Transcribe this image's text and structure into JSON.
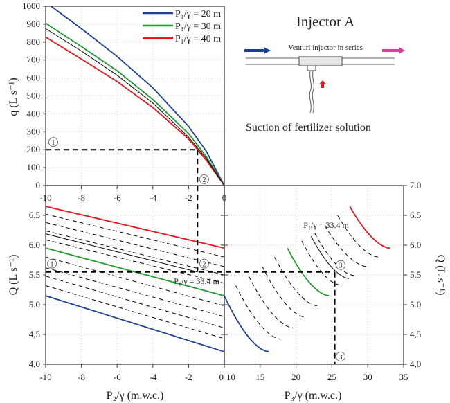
{
  "diagram": {
    "title": "Injector A",
    "caption_top": "Venturi injector in series",
    "caption_bottom": "Suction of fertilizer solution",
    "inflow_arrow_color": "#1f3f8f",
    "outflow_arrow_color": "#c8468f",
    "suction_arrow_color": "#e8141c"
  },
  "chart_data": [
    {
      "id": "top",
      "type": "line",
      "xlabel": "",
      "ylabel": "q (L s⁻¹)",
      "xlim": [
        -10,
        0
      ],
      "ylim": [
        0,
        1000
      ],
      "yticks": [
        "0",
        "100",
        "200",
        "300",
        "400",
        "500",
        "600",
        "700",
        "800",
        "900",
        "1000"
      ],
      "grid": true,
      "legend": "top-right",
      "series": [
        {
          "name": "P₁/γ = 20 m",
          "color": "#1f3f8f",
          "x": [
            -9.7,
            -8,
            -6,
            -4,
            -2,
            -1,
            0
          ],
          "y": [
            1000,
            875,
            720,
            545,
            330,
            190,
            0
          ]
        },
        {
          "name": "P₁/γ = 30 m",
          "color": "#1e9a2e",
          "x": [
            -10,
            -8,
            -6,
            -4,
            -2,
            -1,
            0
          ],
          "y": [
            905,
            775,
            640,
            480,
            290,
            160,
            0
          ]
        },
        {
          "name": "P₁/γ = 40 m",
          "color": "#e8141c",
          "x": [
            -10,
            -8,
            -6,
            -4,
            -2,
            -1,
            0
          ],
          "y": [
            828,
            705,
            580,
            435,
            260,
            140,
            0
          ]
        },
        {
          "color": "#000000",
          "x": [
            -10,
            -8,
            -6,
            -4,
            -2,
            -1,
            0
          ],
          "y": [
            875,
            750,
            615,
            460,
            270,
            150,
            0
          ]
        }
      ],
      "guide": {
        "q": 200,
        "p2": -1.5,
        "markers": [
          "①",
          "②"
        ]
      }
    },
    {
      "id": "bottom-left",
      "type": "line",
      "xlabel": "P₂/γ (m.w.c.)",
      "ylabel": "Q (L s⁻¹)",
      "xlim": [
        -10,
        0
      ],
      "ylim": [
        4.0,
        7.0
      ],
      "xticks": [
        "-10",
        "-8",
        "-6",
        "-4",
        "-2",
        "0"
      ],
      "yticks": [
        "4,0",
        "4,5",
        "5.0",
        "5.5",
        "6.0",
        "6.5"
      ],
      "grid": true,
      "annotation": "P₁/γ = 33.4 m",
      "series": [
        {
          "color": "#e8141c",
          "x": [
            -10,
            0
          ],
          "y": [
            6.65,
            5.95
          ]
        },
        {
          "color": "#1e9a2e",
          "x": [
            -10,
            0
          ],
          "y": [
            5.95,
            5.15
          ]
        },
        {
          "color": "#1f3f8f",
          "x": [
            -10,
            0
          ],
          "y": [
            5.15,
            4.21
          ]
        },
        {
          "color": "#000000",
          "x": [
            -10,
            -1.5
          ],
          "y": [
            6.19,
            5.55
          ]
        },
        {
          "color": "#000000",
          "dashed": true,
          "x": [
            -10,
            0
          ],
          "y": [
            6.52,
            5.8
          ]
        },
        {
          "color": "#000000",
          "dashed": true,
          "x": [
            -10,
            0
          ],
          "y": [
            6.38,
            5.64
          ]
        },
        {
          "color": "#000000",
          "dashed": true,
          "x": [
            -10,
            0
          ],
          "y": [
            6.24,
            5.5
          ]
        },
        {
          "color": "#000000",
          "dashed": true,
          "x": [
            -10,
            0
          ],
          "y": [
            6.09,
            5.36
          ]
        },
        {
          "color": "#000000",
          "dashed": true,
          "x": [
            -10,
            0
          ],
          "y": [
            5.8,
            4.98
          ]
        },
        {
          "color": "#000000",
          "dashed": true,
          "x": [
            -10,
            0
          ],
          "y": [
            5.62,
            4.8
          ]
        },
        {
          "color": "#000000",
          "dashed": true,
          "x": [
            -10,
            0
          ],
          "y": [
            5.48,
            4.61
          ]
        },
        {
          "color": "#000000",
          "dashed": true,
          "x": [
            -10,
            0
          ],
          "y": [
            5.32,
            4.43
          ]
        }
      ],
      "guide": {
        "Q": 5.55,
        "markers": [
          "①",
          "②"
        ]
      }
    },
    {
      "id": "bottom-right",
      "type": "line",
      "xlabel": "P₃/γ (m.w.c.)",
      "ylabel": "Q (L s⁻¹)",
      "xlim": [
        10,
        35
      ],
      "ylim": [
        4.0,
        7.0
      ],
      "xticks": [
        "10",
        "15",
        "20",
        "25",
        "30",
        "35"
      ],
      "yticks": [
        "4,0",
        "4,5",
        "5.0",
        "5.5",
        "6.0",
        "6.5",
        "7.0"
      ],
      "grid": true,
      "annotation": "P₁/γ = 33.4 m",
      "series": [
        {
          "color": "#1f3f8f",
          "x": [
            10,
            16.2
          ],
          "y": [
            5.15,
            4.21
          ]
        },
        {
          "color": "#1e9a2e",
          "x": [
            18.8,
            24.6
          ],
          "y": [
            5.95,
            5.15
          ]
        },
        {
          "color": "#e8141c",
          "x": [
            27.5,
            33.1
          ],
          "y": [
            6.65,
            5.95
          ]
        },
        {
          "color": "#000000",
          "x": [
            22.1,
            27.4
          ],
          "y": [
            6.15,
            5.44
          ]
        },
        {
          "color": "#000000",
          "dashed": true,
          "x": [
            11.6,
            17.9
          ],
          "y": [
            5.32,
            4.42
          ]
        },
        {
          "color": "#000000",
          "dashed": true,
          "x": [
            13.4,
            19.6
          ],
          "y": [
            5.48,
            4.61
          ]
        },
        {
          "color": "#000000",
          "dashed": true,
          "x": [
            15.3,
            21.3
          ],
          "y": [
            5.64,
            4.79
          ]
        },
        {
          "color": "#000000",
          "dashed": true,
          "x": [
            17.0,
            23.0
          ],
          "y": [
            5.8,
            4.98
          ]
        },
        {
          "color": "#000000",
          "dashed": true,
          "x": [
            20.8,
            26.2
          ],
          "y": [
            6.07,
            5.33
          ]
        },
        {
          "color": "#000000",
          "dashed": true,
          "x": [
            22.6,
            28.1
          ],
          "y": [
            6.2,
            5.49
          ]
        },
        {
          "color": "#000000",
          "dashed": true,
          "x": [
            24.0,
            29.9
          ],
          "y": [
            6.33,
            5.64
          ]
        },
        {
          "color": "#000000",
          "dashed": true,
          "x": [
            25.8,
            31.5
          ],
          "y": [
            6.5,
            5.8
          ]
        }
      ],
      "guide": {
        "Q": 5.55,
        "p3": 25.4,
        "markers": [
          "③",
          "③"
        ]
      }
    }
  ]
}
